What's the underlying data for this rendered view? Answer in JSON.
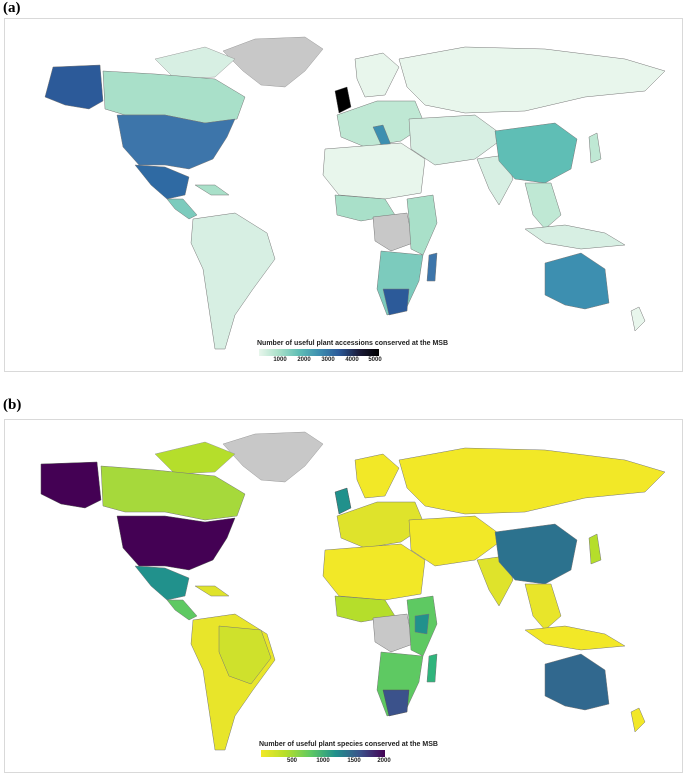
{
  "figure": {
    "panel_a": {
      "label": "(a)",
      "legend_title": "Number of useful plant accessions conserved at the MSB",
      "legend_ticks": [
        "1000",
        "2000",
        "3000",
        "4000",
        "5000"
      ],
      "colormap": [
        "#e8f6ec",
        "#a9e0c9",
        "#5fbeb5",
        "#3d8fb0",
        "#2c5a99",
        "#1b1b3a",
        "#000000"
      ],
      "no_data_color": "#c8c8c8"
    },
    "panel_b": {
      "label": "(b)",
      "legend_title": "Number of useful plant species conserved at the MSB",
      "legend_ticks": [
        "500",
        "1000",
        "1500",
        "2000"
      ],
      "colormap": [
        "#f2e827",
        "#b5de2b",
        "#5ec962",
        "#21918c",
        "#3b528b",
        "#440154"
      ],
      "no_data_color": "#c8c8c8"
    }
  }
}
